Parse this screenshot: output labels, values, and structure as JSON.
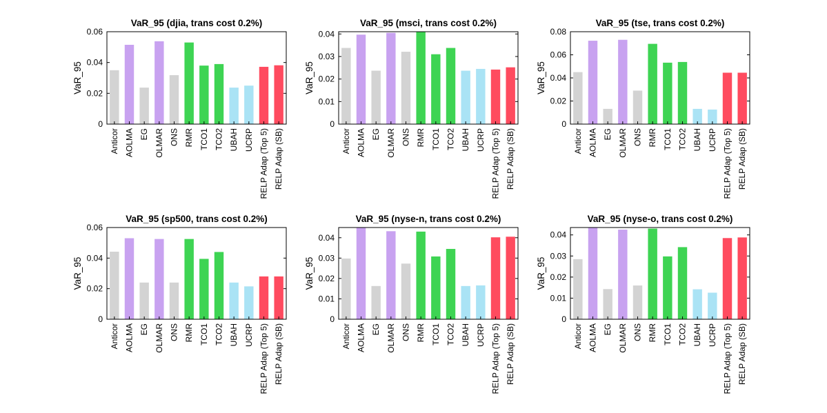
{
  "colors": {
    "gray": "#d3d3d3",
    "purple": "#c8a2f0",
    "green": "#3ed453",
    "lightblue": "#aae3f5",
    "red": "#ff4b5f"
  },
  "chart_data": [
    {
      "type": "bar",
      "title": "VaR_95 (djia, trans cost 0.2%)",
      "ylabel": "VaR_95",
      "ylim": [
        0,
        0.06
      ],
      "yticks": [
        "0",
        "0.02",
        "0.04",
        "0.06"
      ],
      "categories": [
        "Anticor",
        "AOLMA",
        "EG",
        "OLMAR",
        "ONS",
        "RMR",
        "TCO1",
        "TCO2",
        "UBAH",
        "UCRP",
        "RELP Adap (Top 5)",
        "RELP Adap (SB)"
      ],
      "bar_colors": [
        "gray",
        "purple",
        "gray",
        "purple",
        "gray",
        "green",
        "green",
        "green",
        "lightblue",
        "lightblue",
        "red",
        "red"
      ],
      "values": [
        0.035,
        0.0515,
        0.0237,
        0.0538,
        0.0318,
        0.053,
        0.038,
        0.039,
        0.0237,
        0.025,
        0.0372,
        0.0382
      ]
    },
    {
      "type": "bar",
      "title": "VaR_95 (msci, trans cost 0.2%)",
      "ylabel": "VaR_95",
      "ylim": [
        0,
        0.041
      ],
      "yticks": [
        "0",
        "0.01",
        "0.02",
        "0.03",
        "0.04"
      ],
      "categories": [
        "Anticor",
        "AOLMA",
        "EG",
        "OLMAR",
        "ONS",
        "RMR",
        "TCO1",
        "TCO2",
        "UBAH",
        "UCRP",
        "RELP Adap (Top 5)",
        "RELP Adap (SB)"
      ],
      "bar_colors": [
        "gray",
        "purple",
        "gray",
        "purple",
        "gray",
        "green",
        "green",
        "green",
        "lightblue",
        "lightblue",
        "red",
        "red"
      ],
      "values": [
        0.0338,
        0.0397,
        0.0237,
        0.0405,
        0.0321,
        0.041,
        0.031,
        0.0338,
        0.0237,
        0.0245,
        0.0242,
        0.0252
      ]
    },
    {
      "type": "bar",
      "title": "VaR_95 (tse, trans cost 0.2%)",
      "ylabel": "VaR_95",
      "ylim": [
        0,
        0.08
      ],
      "yticks": [
        "0",
        "0.02",
        "0.04",
        "0.06",
        "0.08"
      ],
      "categories": [
        "Anticor",
        "AOLMA",
        "EG",
        "OLMAR",
        "ONS",
        "RMR",
        "TCO1",
        "TCO2",
        "UBAH",
        "UCRP",
        "RELP Adap (Top 5)",
        "RELP Adap (SB)"
      ],
      "bar_colors": [
        "gray",
        "purple",
        "gray",
        "purple",
        "gray",
        "green",
        "green",
        "green",
        "lightblue",
        "lightblue",
        "red",
        "red"
      ],
      "values": [
        0.045,
        0.0722,
        0.0132,
        0.073,
        0.029,
        0.0695,
        0.0532,
        0.0538,
        0.0132,
        0.0126,
        0.0445,
        0.0445
      ]
    },
    {
      "type": "bar",
      "title": "VaR_95 (sp500, trans cost 0.2%)",
      "ylabel": "VaR_95",
      "ylim": [
        0,
        0.06
      ],
      "yticks": [
        "0",
        "0.02",
        "0.04",
        "0.06"
      ],
      "categories": [
        "Anticor",
        "AOLMA",
        "EG",
        "OLMAR",
        "ONS",
        "RMR",
        "TCO1",
        "TCO2",
        "UBAH",
        "UCRP",
        "RELP Adap (Top 5)",
        "RELP Adap (SB)"
      ],
      "bar_colors": [
        "gray",
        "purple",
        "gray",
        "purple",
        "gray",
        "green",
        "green",
        "green",
        "lightblue",
        "lightblue",
        "red",
        "red"
      ],
      "values": [
        0.0442,
        0.053,
        0.024,
        0.0525,
        0.024,
        0.0525,
        0.0395,
        0.044,
        0.024,
        0.0215,
        0.028,
        0.028
      ]
    },
    {
      "type": "bar",
      "title": "VaR_95 (nyse-n, trans cost 0.2%)",
      "ylabel": "VaR_95",
      "ylim": [
        0,
        0.045
      ],
      "yticks": [
        "0",
        "0.01",
        "0.02",
        "0.03",
        "0.04"
      ],
      "categories": [
        "Anticor",
        "AOLMA",
        "EG",
        "OLMAR",
        "ONS",
        "RMR",
        "TCO1",
        "TCO2",
        "UBAH",
        "UCRP",
        "RELP Adap (Top 5)",
        "RELP Adap (SB)"
      ],
      "bar_colors": [
        "gray",
        "purple",
        "gray",
        "purple",
        "gray",
        "green",
        "green",
        "green",
        "lightblue",
        "lightblue",
        "red",
        "red"
      ],
      "values": [
        0.0298,
        0.045,
        0.0163,
        0.0432,
        0.0273,
        0.043,
        0.0308,
        0.0345,
        0.0163,
        0.0166,
        0.0402,
        0.0405
      ]
    },
    {
      "type": "bar",
      "title": "VaR_95 (nyse-o, trans cost 0.2%)",
      "ylabel": "VaR_95",
      "ylim": [
        0,
        0.0435
      ],
      "yticks": [
        "0",
        "0.01",
        "0.02",
        "0.03",
        "0.04"
      ],
      "categories": [
        "Anticor",
        "AOLMA",
        "EG",
        "OLMAR",
        "ONS",
        "RMR",
        "TCO1",
        "TCO2",
        "UBAH",
        "UCRP",
        "RELP Adap (Top 5)",
        "RELP Adap (SB)"
      ],
      "bar_colors": [
        "gray",
        "purple",
        "gray",
        "purple",
        "gray",
        "green",
        "green",
        "green",
        "lightblue",
        "lightblue",
        "red",
        "red"
      ],
      "values": [
        0.0285,
        0.0435,
        0.0143,
        0.0425,
        0.016,
        0.043,
        0.0298,
        0.0342,
        0.0142,
        0.0126,
        0.0385,
        0.0388
      ]
    }
  ]
}
